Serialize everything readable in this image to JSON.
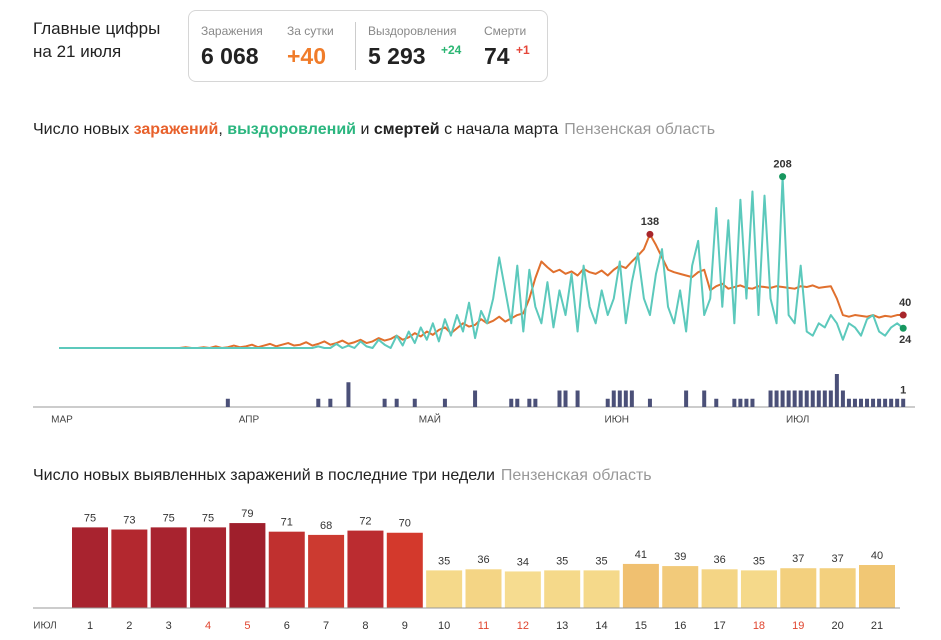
{
  "summary": {
    "heading": "Главные цифры",
    "date": "на 21 июля",
    "stats": [
      {
        "label": "Заражения",
        "value": "6 068"
      },
      {
        "label": "За сутки",
        "value": "+40"
      },
      {
        "label": "Выздоровления",
        "value": "5 293",
        "change": "+24"
      },
      {
        "label": "Смерти",
        "value": "74",
        "change": "+1"
      }
    ]
  },
  "chart_data": [
    {
      "type": "line",
      "title_parts": [
        {
          "text": "Число новых",
          "color": "#222222"
        },
        {
          "text": "заражений",
          "color": "#e8612c"
        },
        {
          "text": ",",
          "color": "#222222"
        },
        {
          "text": "выздоровлений",
          "color": "#2bb67f"
        },
        {
          "text": "и",
          "color": "#222222"
        },
        {
          "text": "смертей",
          "color": "#222222"
        },
        {
          "text": "с начала марта",
          "color": "#222222"
        }
      ],
      "subtitle": "Пензенская область",
      "categories": [
        "МАР",
        null,
        null,
        null,
        null,
        null,
        null,
        null,
        null,
        null,
        null,
        null,
        null,
        null,
        null,
        null,
        null,
        null,
        null,
        null,
        null,
        null,
        null,
        null,
        null,
        null,
        null,
        null,
        null,
        null,
        null,
        "АПР",
        null,
        null,
        null,
        null,
        null,
        null,
        null,
        null,
        null,
        null,
        null,
        null,
        null,
        null,
        null,
        null,
        null,
        null,
        null,
        null,
        null,
        null,
        null,
        null,
        null,
        null,
        null,
        null,
        null,
        "МАЙ",
        null,
        null,
        null,
        null,
        null,
        null,
        null,
        null,
        null,
        null,
        null,
        null,
        null,
        null,
        null,
        null,
        null,
        null,
        null,
        null,
        null,
        null,
        null,
        null,
        null,
        null,
        null,
        null,
        null,
        null,
        "ИЮН",
        null,
        null,
        null,
        null,
        null,
        null,
        null,
        null,
        null,
        null,
        null,
        null,
        null,
        null,
        null,
        null,
        null,
        null,
        null,
        null,
        null,
        null,
        null,
        null,
        null,
        null,
        null,
        null,
        null,
        "ИЮЛ",
        null,
        null,
        null,
        null,
        null,
        null,
        null,
        null,
        null,
        null,
        null,
        null,
        null,
        null,
        null,
        null,
        null,
        null
      ],
      "ylim": [
        0,
        210
      ],
      "y2lim": [
        0,
        4
      ],
      "series": [
        {
          "color": "#e0702e",
          "marker_color": "#a8262b",
          "values": [
            0,
            0,
            0,
            0,
            0,
            0,
            0,
            0,
            0,
            0,
            0,
            0,
            0,
            0,
            0,
            0,
            0,
            0,
            0,
            0,
            0,
            1,
            0,
            0,
            1,
            0,
            2,
            0,
            1,
            3,
            1,
            2,
            4,
            1,
            3,
            5,
            2,
            4,
            6,
            3,
            4,
            7,
            3,
            5,
            8,
            4,
            6,
            9,
            5,
            7,
            10,
            6,
            8,
            12,
            9,
            11,
            15,
            10,
            13,
            18,
            14,
            20,
            16,
            22,
            25,
            18,
            24,
            30,
            26,
            28,
            35,
            30,
            33,
            38,
            32,
            36,
            40,
            42,
            60,
            85,
            105,
            98,
            92,
            95,
            90,
            93,
            88,
            96,
            92,
            90,
            94,
            88,
            95,
            100,
            97,
            105,
            112,
            120,
            138,
            125,
            110,
            95,
            92,
            90,
            88,
            86,
            92,
            95,
            70,
            75,
            78,
            72,
            74,
            76,
            73,
            72,
            75,
            74,
            73,
            75,
            74,
            73,
            72,
            75,
            74,
            76,
            73,
            74,
            75,
            60,
            40,
            38,
            40,
            39,
            38,
            40,
            37,
            39,
            38,
            40,
            40
          ]
        },
        {
          "color": "#5cc9bc",
          "marker_color": "#17975f",
          "values": [
            0,
            0,
            0,
            0,
            0,
            0,
            0,
            0,
            0,
            0,
            0,
            0,
            0,
            0,
            0,
            0,
            0,
            0,
            0,
            0,
            0,
            0,
            0,
            0,
            0,
            0,
            0,
            0,
            0,
            0,
            0,
            0,
            0,
            0,
            0,
            0,
            0,
            0,
            0,
            0,
            0,
            0,
            0,
            2,
            0,
            0,
            5,
            0,
            3,
            0,
            8,
            2,
            0,
            10,
            4,
            0,
            15,
            3,
            20,
            6,
            25,
            10,
            30,
            8,
            35,
            15,
            40,
            20,
            55,
            12,
            45,
            30,
            60,
            110,
            70,
            30,
            100,
            20,
            95,
            50,
            30,
            80,
            25,
            70,
            40,
            90,
            20,
            100,
            50,
            30,
            70,
            40,
            60,
            105,
            30,
            80,
            115,
            60,
            40,
            90,
            120,
            50,
            30,
            70,
            20,
            100,
            130,
            40,
            60,
            170,
            50,
            155,
            30,
            180,
            60,
            190,
            40,
            185,
            60,
            30,
            208,
            40,
            30,
            100,
            20,
            15,
            30,
            25,
            40,
            30,
            10,
            30,
            25,
            15,
            35,
            40,
            20,
            15,
            25,
            30,
            24
          ]
        },
        {
          "kind": "bar",
          "axis": "y2",
          "color": "#4b5078",
          "values": [
            0,
            0,
            0,
            0,
            0,
            0,
            0,
            0,
            0,
            0,
            0,
            0,
            0,
            0,
            0,
            0,
            0,
            0,
            0,
            0,
            0,
            0,
            0,
            0,
            0,
            0,
            0,
            0,
            1,
            0,
            0,
            0,
            0,
            0,
            0,
            0,
            0,
            0,
            0,
            0,
            0,
            0,
            0,
            1,
            0,
            1,
            0,
            0,
            3,
            0,
            0,
            0,
            0,
            0,
            1,
            0,
            1,
            0,
            0,
            1,
            0,
            0,
            0,
            0,
            1,
            0,
            0,
            0,
            0,
            2,
            0,
            0,
            0,
            0,
            0,
            1,
            1,
            0,
            1,
            1,
            0,
            0,
            0,
            2,
            2,
            0,
            2,
            0,
            0,
            0,
            0,
            1,
            2,
            2,
            2,
            2,
            0,
            0,
            1,
            0,
            0,
            0,
            0,
            0,
            2,
            0,
            0,
            2,
            0,
            1,
            0,
            0,
            1,
            1,
            1,
            1,
            0,
            0,
            2,
            2,
            2,
            2,
            2,
            2,
            2,
            2,
            2,
            2,
            2,
            4,
            2,
            1,
            1,
            1,
            1,
            1,
            1,
            1,
            1,
            1,
            1
          ]
        }
      ]
    },
    {
      "type": "bar",
      "title": "Число новых выявленных заражений в последние три недели",
      "subtitle": "Пензенская область",
      "x_label": "ИЮЛ",
      "categories": [
        "1",
        "2",
        "3",
        "4",
        "5",
        "6",
        "7",
        "8",
        "9",
        "10",
        "11",
        "12",
        "13",
        "14",
        "15",
        "16",
        "17",
        "18",
        "19",
        "20",
        "21"
      ],
      "values": [
        75,
        73,
        75,
        75,
        79,
        71,
        68,
        72,
        70,
        35,
        36,
        34,
        35,
        35,
        41,
        39,
        36,
        35,
        37,
        37,
        40
      ],
      "colors": [
        "#a8232f",
        "#b3282f",
        "#a8232f",
        "#a8232f",
        "#9f1f2c",
        "#c0302f",
        "#cc3a30",
        "#bb2c30",
        "#d3392c",
        "#f5d98a",
        "#f4d585",
        "#f6dc90",
        "#f5d98a",
        "#f5d98a",
        "#f0c070",
        "#f2ca7a",
        "#f4d585",
        "#f5d98a",
        "#f3d07e",
        "#f3d07e",
        "#f1c774"
      ],
      "category_colors": [
        "#333333",
        "#333333",
        "#333333",
        "#e0452f",
        "#e0452f",
        "#333333",
        "#333333",
        "#333333",
        "#333333",
        "#333333",
        "#e0452f",
        "#e0452f",
        "#333333",
        "#333333",
        "#333333",
        "#333333",
        "#333333",
        "#e0452f",
        "#e0452f",
        "#333333",
        "#333333"
      ],
      "ylim": [
        0,
        80
      ]
    }
  ]
}
